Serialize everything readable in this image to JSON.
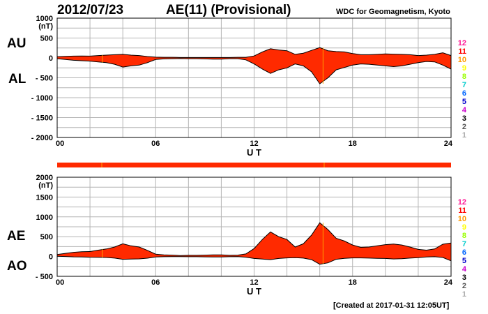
{
  "header": {
    "date": "2012/07/23",
    "title": "AE(11) (Provisional)",
    "source": "WDC for Geomagnetism, Kyoto"
  },
  "footer": {
    "created": "[Created at 2017-01-31 12:05UT]"
  },
  "colors": {
    "fill": "#ff2a00",
    "band": "#ff2a00",
    "grid": "#b4b4b4",
    "line": "#000000",
    "marker": "#ffa000"
  },
  "station_count_legend": {
    "labels": [
      "12",
      "11",
      "10",
      "9",
      "8",
      "7",
      "6",
      "5",
      "4",
      "3",
      "2",
      "1"
    ],
    "colors": [
      "#ff1493",
      "#ff0000",
      "#ff9900",
      "#ffff00",
      "#99ff00",
      "#00cccc",
      "#0066ff",
      "#0000cc",
      "#cc00cc",
      "#000000",
      "#555555",
      "#aaaaaa"
    ]
  },
  "chart_data": [
    {
      "type": "area",
      "panel": "AU/AL",
      "labels_upper": "AU",
      "labels_lower": "AL",
      "unit": "(nT)",
      "xlabel": "U T",
      "xlim": [
        0,
        24
      ],
      "ylim": [
        -2000,
        1000
      ],
      "yticks": [
        1000,
        500,
        0,
        -500,
        -1000,
        -1500,
        -2000
      ],
      "ytick_labels": [
        "1000",
        "500",
        "0",
        "- 500",
        "- 1000",
        "- 1500",
        "- 2000"
      ],
      "xticks": [
        0,
        6,
        12,
        18,
        24
      ],
      "xtick_labels": [
        "00",
        "06",
        "12",
        "18",
        "24"
      ],
      "grid": true,
      "hours": [
        0,
        0.5,
        1,
        1.5,
        2,
        2.5,
        3,
        3.5,
        4,
        4.5,
        5,
        5.5,
        6,
        6.5,
        7,
        7.5,
        8,
        8.5,
        9,
        9.5,
        10,
        10.5,
        11,
        11.5,
        12,
        12.5,
        13,
        13.5,
        14,
        14.5,
        15,
        15.5,
        16,
        16.5,
        17,
        17.5,
        18,
        18.5,
        19,
        19.5,
        20,
        20.5,
        21,
        21.5,
        22,
        22.5,
        23,
        23.5,
        24
      ],
      "series": [
        {
          "name": "AU",
          "values": [
            30,
            40,
            45,
            50,
            45,
            60,
            70,
            80,
            90,
            70,
            60,
            35,
            20,
            15,
            15,
            10,
            10,
            10,
            10,
            10,
            10,
            10,
            15,
            15,
            50,
            150,
            230,
            200,
            180,
            90,
            120,
            190,
            260,
            180,
            160,
            150,
            110,
            80,
            80,
            90,
            100,
            95,
            90,
            80,
            60,
            70,
            90,
            130,
            60
          ]
        },
        {
          "name": "AL",
          "values": [
            -20,
            -40,
            -60,
            -70,
            -80,
            -100,
            -120,
            -160,
            -230,
            -200,
            -180,
            -120,
            -40,
            -25,
            -20,
            -15,
            -20,
            -20,
            -25,
            -30,
            -30,
            -20,
            -20,
            -50,
            -150,
            -280,
            -390,
            -300,
            -250,
            -150,
            -200,
            -350,
            -650,
            -500,
            -300,
            -240,
            -180,
            -150,
            -160,
            -180,
            -200,
            -220,
            -200,
            -160,
            -120,
            -90,
            -100,
            -180,
            -280
          ]
        }
      ]
    },
    {
      "type": "area",
      "panel": "AE/AO",
      "labels_upper": "AE",
      "labels_lower": "AO",
      "unit": "(nT)",
      "xlabel": "U T",
      "xlim": [
        0,
        24
      ],
      "ylim": [
        -500,
        2000
      ],
      "yticks": [
        2000,
        1500,
        1000,
        500,
        0,
        -500
      ],
      "ytick_labels": [
        "2000",
        "1500",
        "1000",
        "500",
        "0",
        "- 500"
      ],
      "xticks": [
        0,
        6,
        12,
        18,
        24
      ],
      "xtick_labels": [
        "00",
        "06",
        "12",
        "18",
        "24"
      ],
      "grid": true,
      "hours": [
        0,
        0.5,
        1,
        1.5,
        2,
        2.5,
        3,
        3.5,
        4,
        4.5,
        5,
        5.5,
        6,
        6.5,
        7,
        7.5,
        8,
        8.5,
        9,
        9.5,
        10,
        10.5,
        11,
        11.5,
        12,
        12.5,
        13,
        13.5,
        14,
        14.5,
        15,
        15.5,
        16,
        16.5,
        17,
        17.5,
        18,
        18.5,
        19,
        19.5,
        20,
        20.5,
        21,
        21.5,
        22,
        22.5,
        23,
        23.5,
        24
      ],
      "series": [
        {
          "name": "AE",
          "values": [
            50,
            80,
            105,
            120,
            125,
            160,
            190,
            240,
            320,
            270,
            240,
            155,
            60,
            40,
            35,
            25,
            30,
            30,
            35,
            40,
            40,
            30,
            35,
            65,
            200,
            430,
            620,
            500,
            430,
            240,
            320,
            540,
            850,
            680,
            460,
            390,
            290,
            230,
            240,
            270,
            300,
            315,
            290,
            240,
            180,
            160,
            190,
            310,
            340
          ]
        },
        {
          "name": "AO",
          "values": [
            5,
            0,
            -8,
            -10,
            -18,
            -20,
            -25,
            -40,
            -70,
            -65,
            -60,
            -42,
            -10,
            -5,
            -3,
            -3,
            -5,
            -5,
            -8,
            -10,
            -10,
            -5,
            -3,
            -18,
            -50,
            -65,
            -80,
            -50,
            -35,
            -30,
            -40,
            -80,
            -195,
            -160,
            -70,
            -45,
            -35,
            -35,
            -40,
            -45,
            -50,
            -62,
            -55,
            -40,
            -30,
            -10,
            -5,
            -25,
            -110
          ]
        }
      ]
    }
  ]
}
